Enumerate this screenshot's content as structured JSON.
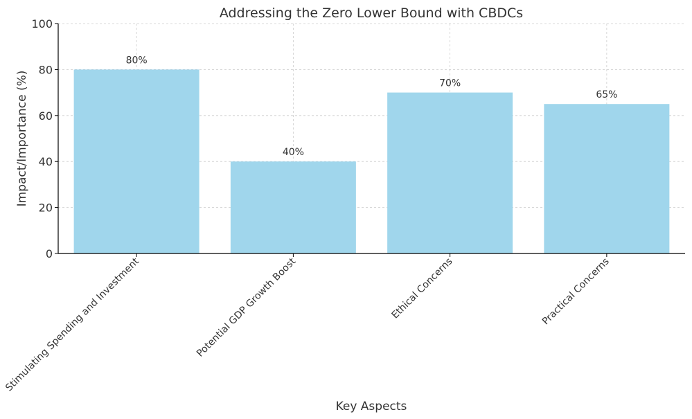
{
  "chart_data": {
    "type": "bar",
    "title": "Addressing the Zero Lower Bound with CBDCs",
    "xlabel": "Key Aspects",
    "ylabel": "Impact/Importance (%)",
    "categories": [
      "Stimulating Spending and Investment",
      "Potential GDP Growth Boost",
      "Ethical Concerns",
      "Practical Concerns"
    ],
    "values": [
      80,
      40,
      70,
      65
    ],
    "data_labels": [
      "80%",
      "40%",
      "70%",
      "65%"
    ],
    "ylim": [
      0,
      100
    ],
    "yticks": [
      0,
      20,
      40,
      60,
      80,
      100
    ],
    "grid": true,
    "bar_color": "#a0d6ec",
    "grid_color": "#cccccc"
  }
}
